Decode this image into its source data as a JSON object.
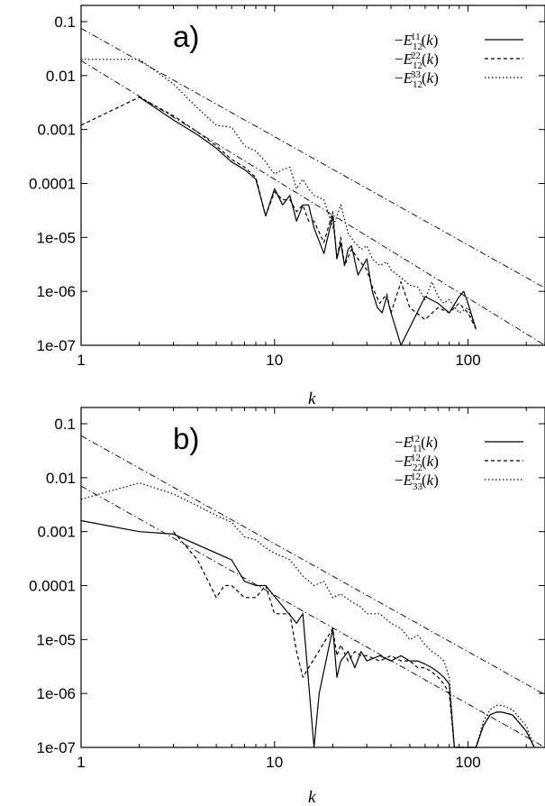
{
  "chart_data": [
    {
      "type": "line",
      "panel_label": "a)",
      "xlabel": "k",
      "ylabel": "",
      "xscale": "log",
      "yscale": "log",
      "xlim": [
        1,
        250
      ],
      "ylim": [
        1e-07,
        0.2
      ],
      "xticks": [
        1,
        10,
        100
      ],
      "xtick_labels": [
        "1",
        "10",
        "100"
      ],
      "yticks": [
        0.1,
        0.01,
        0.001,
        0.0001,
        1e-05,
        1e-06,
        1e-07
      ],
      "ytick_labels": [
        "0.1",
        "0.01",
        "0.001",
        "0.0001",
        "1e-05",
        "1e-06",
        "1e-07"
      ],
      "legend_position": "top-right",
      "series": [
        {
          "name": "−E^{11}_{12}(k)",
          "style": "solid",
          "x": [
            2,
            3,
            4,
            5,
            6,
            7,
            8,
            9,
            10,
            11,
            12,
            13,
            14,
            15,
            16,
            18,
            20,
            21,
            22,
            23,
            24,
            25,
            27,
            30,
            32,
            34,
            36,
            38,
            40,
            45,
            60,
            70,
            80,
            90,
            95,
            100,
            110
          ],
          "y": [
            0.004,
            0.0015,
            0.0008,
            0.00045,
            0.00025,
            0.00018,
            0.00012,
            2.5e-05,
            8e-05,
            4e-05,
            6e-05,
            2e-05,
            4e-05,
            4e-05,
            1.5e-05,
            5e-06,
            2.5e-05,
            4e-06,
            8e-06,
            3e-06,
            6e-06,
            7e-06,
            2e-06,
            4e-06,
            1e-06,
            5e-07,
            4e-07,
            8e-07,
            4e-07,
            1e-07,
            8e-07,
            6e-07,
            4e-07,
            8e-07,
            1e-06,
            6e-07,
            2e-07
          ]
        },
        {
          "name": "−E^{22}_{12}(k)",
          "style": "dashed",
          "x": [
            1,
            2,
            3,
            4,
            5,
            6,
            7,
            8,
            9,
            10,
            11,
            12,
            13,
            14,
            15,
            16,
            18,
            20,
            21,
            22,
            23,
            25,
            27,
            30,
            32,
            35,
            38,
            40,
            45,
            50,
            60,
            70,
            80,
            90,
            100,
            110
          ],
          "y": [
            0.0012,
            0.004,
            0.0018,
            0.0009,
            0.0005,
            0.00028,
            0.0002,
            0.00013,
            2.5e-05,
            7e-05,
            5e-05,
            5e-05,
            3e-05,
            4e-05,
            2e-05,
            2e-05,
            8e-06,
            3e-05,
            4e-06,
            1e-05,
            3e-06,
            6e-06,
            4e-06,
            2.5e-06,
            1.2e-06,
            6e-07,
            9e-07,
            4e-07,
            1.5e-06,
            5e-07,
            3e-07,
            5e-07,
            4e-07,
            6e-07,
            4e-07,
            2e-07
          ]
        },
        {
          "name": "−E^{33}_{12}(k)",
          "style": "dotted",
          "x": [
            1,
            2,
            3,
            4,
            5,
            6,
            7,
            8,
            9,
            10,
            11,
            12,
            13,
            14,
            15,
            16,
            18,
            20,
            22,
            24,
            26,
            28,
            30,
            32,
            35,
            38,
            40,
            45,
            50,
            55,
            60,
            65,
            70,
            75,
            80,
            90,
            100,
            110
          ],
          "y": [
            0.02,
            0.02,
            0.007,
            0.0025,
            0.0012,
            0.0011,
            0.0005,
            0.0004,
            0.00025,
            0.00015,
            0.00018,
            0.0002,
            8e-05,
            0.00012,
            8e-05,
            6e-05,
            5e-05,
            1.5e-05,
            4e-05,
            1.2e-05,
            8e-06,
            6e-06,
            7e-06,
            4e-06,
            3e-06,
            3.5e-06,
            2.5e-06,
            1.8e-06,
            1.3e-06,
            1.2e-06,
            7e-07,
            1.5e-06,
            8e-07,
            6e-07,
            7e-07,
            4e-07,
            5e-07,
            2e-07
          ]
        }
      ],
      "reference_lines": [
        {
          "style": "dashdot",
          "x": [
            1,
            250
          ],
          "y": [
            0.075,
            1.15e-06
          ]
        },
        {
          "style": "dashdot",
          "x": [
            1,
            250
          ],
          "y": [
            0.019,
            9e-08
          ]
        }
      ]
    },
    {
      "type": "line",
      "panel_label": "b)",
      "xlabel": "k",
      "ylabel": "",
      "xscale": "log",
      "yscale": "log",
      "xlim": [
        1,
        250
      ],
      "ylim": [
        1e-07,
        0.2
      ],
      "xticks": [
        1,
        10,
        100
      ],
      "xtick_labels": [
        "1",
        "10",
        "100"
      ],
      "yticks": [
        0.1,
        0.01,
        0.001,
        0.0001,
        1e-05,
        1e-06,
        1e-07
      ],
      "ytick_labels": [
        "0.1",
        "0.01",
        "0.001",
        "0.0001",
        "1e-05",
        "1e-06",
        "1e-07"
      ],
      "legend_position": "top-right",
      "series": [
        {
          "name": "−E^{12}_{11}(k)",
          "style": "solid",
          "x": [
            1,
            2,
            3,
            6,
            7,
            8,
            9,
            13,
            14,
            16,
            17,
            20,
            21,
            22,
            24,
            26,
            28,
            30,
            35,
            40,
            45,
            50,
            55,
            60,
            65,
            70,
            75,
            80,
            85,
            110,
            120,
            130,
            140,
            150,
            170,
            200,
            220
          ],
          "y": [
            0.0016,
            0.001,
            0.0009,
            0.0003,
            0.00012,
            0.0001,
            0.0001,
            2e-05,
            3e-05,
            1e-07,
            1e-06,
            1.6e-05,
            2e-06,
            4e-06,
            6e-06,
            3e-06,
            6e-06,
            4e-06,
            5e-06,
            4e-06,
            5e-06,
            4e-06,
            4e-06,
            3.5e-06,
            3e-06,
            2.5e-06,
            2e-06,
            1.5e-06,
            1e-07,
            1e-07,
            2.5e-07,
            4e-07,
            4.5e-07,
            4.5e-07,
            4e-07,
            2e-07,
            1e-07
          ]
        },
        {
          "name": "−E^{12}_{22}(k)",
          "style": "dashed",
          "x": [
            3,
            4,
            5,
            5.5,
            6,
            7,
            8,
            9,
            10,
            12,
            13,
            14,
            20,
            21,
            22,
            24,
            26,
            28,
            30,
            35,
            40,
            45,
            50,
            55,
            60,
            65,
            70,
            75,
            80,
            85,
            110,
            120,
            130,
            140,
            150,
            170,
            200,
            220
          ],
          "y": [
            0.001,
            0.0003,
            6e-05,
            0.0001,
            0.0001,
            6e-05,
            6e-05,
            0.0001,
            3e-05,
            3e-05,
            6e-06,
            2e-06,
            1.6e-05,
            5e-06,
            8e-06,
            4e-06,
            6e-06,
            5e-06,
            5e-06,
            4e-06,
            5e-06,
            4e-06,
            4e-06,
            3e-06,
            3e-06,
            2.5e-06,
            2e-06,
            1.5e-06,
            1e-06,
            1e-07,
            1e-07,
            2.5e-07,
            4e-07,
            4.5e-07,
            4.5e-07,
            4e-07,
            2e-07,
            1e-07
          ]
        },
        {
          "name": "−E^{12}_{33}(k)",
          "style": "dotted",
          "x": [
            1,
            2,
            3,
            4,
            5,
            6,
            7,
            8,
            9,
            10,
            12,
            14,
            16,
            18,
            20,
            22,
            25,
            28,
            30,
            35,
            40,
            45,
            50,
            55,
            60,
            65,
            70,
            75,
            80,
            85,
            110,
            120,
            130,
            140,
            150,
            170,
            200,
            220
          ],
          "y": [
            0.004,
            0.008,
            0.005,
            0.003,
            0.002,
            0.0015,
            0.0008,
            0.0007,
            0.0005,
            0.0004,
            0.0003,
            0.00015,
            0.0001,
            0.00012,
            6e-05,
            7e-05,
            5e-05,
            4e-05,
            3e-05,
            3e-05,
            2e-05,
            1.6e-05,
            1e-05,
            1.2e-05,
            8e-06,
            6e-06,
            5e-06,
            4e-06,
            2e-06,
            1e-07,
            1e-07,
            3e-07,
            5e-07,
            6e-07,
            6e-07,
            5e-07,
            2.5e-07,
            1e-07
          ]
        }
      ],
      "reference_lines": [
        {
          "style": "dashdot",
          "x": [
            1,
            250
          ],
          "y": [
            0.06,
            9.5e-07
          ]
        },
        {
          "style": "dashdot",
          "x": [
            1,
            250
          ],
          "y": [
            0.007,
            5.5e-08
          ]
        }
      ]
    }
  ]
}
